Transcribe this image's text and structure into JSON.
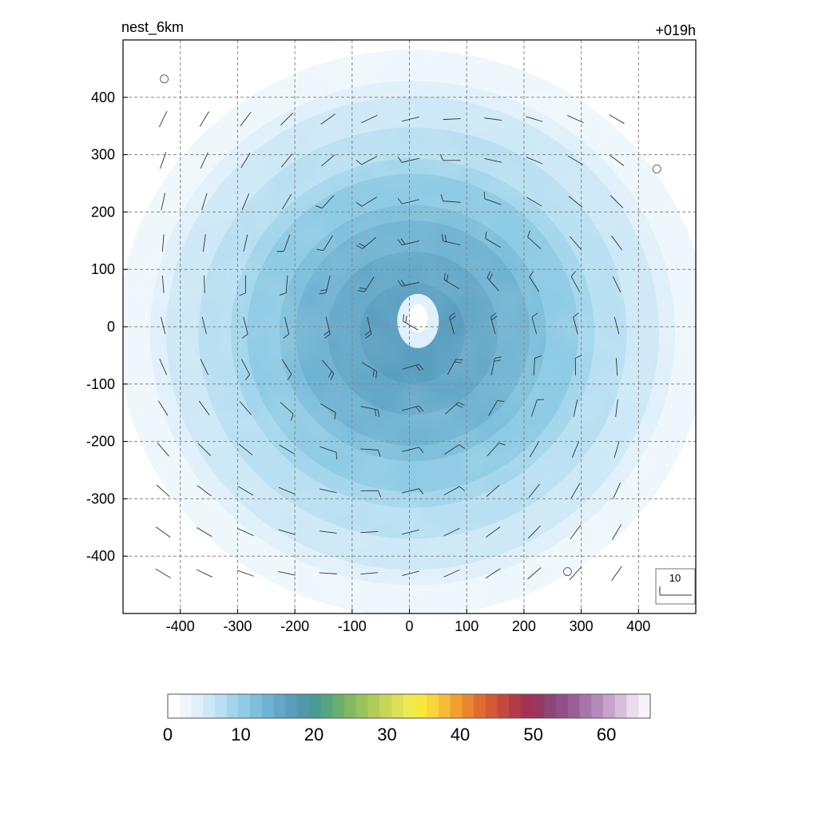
{
  "chart_data": {
    "type": "heatmap",
    "title_left": "nest_6km",
    "title_right": "+019h",
    "xlim": [
      -500,
      500
    ],
    "ylim": [
      -500,
      500
    ],
    "x_ticks": [
      -400,
      -300,
      -200,
      -100,
      0,
      100,
      200,
      300,
      400
    ],
    "y_ticks": [
      -400,
      -300,
      -200,
      -100,
      0,
      100,
      200,
      300,
      400
    ],
    "grid": true,
    "field": {
      "center": [
        0,
        0
      ],
      "peak_value": 17,
      "shape": "vortex",
      "eye_value": 4
    },
    "wind_reference": {
      "label": "10",
      "value": 10
    },
    "calm_markers": [
      [
        -428,
        432
      ],
      [
        432,
        275
      ],
      [
        276,
        -427
      ]
    ],
    "colorbar": {
      "range": [
        0,
        66
      ],
      "tick_values": [
        0,
        10,
        20,
        30,
        40,
        50,
        60
      ],
      "tick_labels": [
        "0",
        "10",
        "20",
        "30",
        "40",
        "50",
        "60"
      ],
      "colors": [
        "#ffffff",
        "#eef7fc",
        "#e0f0fa",
        "#cde8f6",
        "#b8e0f2",
        "#a3d6ec",
        "#8ecbe4",
        "#7dbfdb",
        "#6fb3d2",
        "#63a8c8",
        "#5a9fc0",
        "#4f99a8",
        "#4a9a95",
        "#55a57f",
        "#68b06d",
        "#80ba60",
        "#98c45a",
        "#b0cd58",
        "#c7d657",
        "#dbe056",
        "#eeea50",
        "#f7e93c",
        "#f8d63a",
        "#f5bd36",
        "#f1a030",
        "#ea862c",
        "#e06c2e",
        "#d45a36",
        "#c5483e",
        "#b53a48",
        "#a43254",
        "#953862",
        "#8d4576",
        "#944f88",
        "#9a5f98",
        "#a774aa",
        "#b68bbb",
        "#c6a4cd",
        "#d8bfdd",
        "#ebdcee",
        "#f8f2fa"
      ]
    }
  }
}
